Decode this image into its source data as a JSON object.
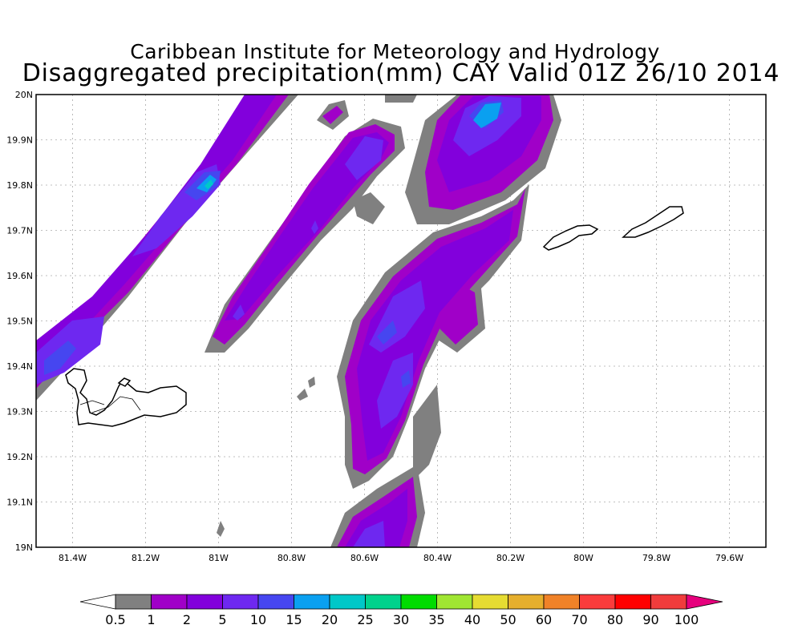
{
  "title": {
    "line1": "Caribbean Institute for Meteorology and Hydrology",
    "line2": "Disaggregated precipitation(mm) CAY Valid 01Z 26/10 2014"
  },
  "map": {
    "lon_range": [
      -81.5,
      -79.5
    ],
    "lat_range": [
      19.0,
      20.0
    ],
    "grid": true,
    "lon_ticks": [
      "81.4W",
      "81.2W",
      "81W",
      "80.8W",
      "80.6W",
      "80.4W",
      "80.2W",
      "80W",
      "79.8W",
      "79.6W"
    ],
    "lat_ticks": [
      "19N",
      "19.1N",
      "19.2N",
      "19.3N",
      "19.4N",
      "19.5N",
      "19.6N",
      "19.7N",
      "19.8N",
      "19.9N",
      "20N"
    ],
    "features": [
      "Grand Cayman",
      "Little Cayman",
      "Cayman Brac"
    ]
  },
  "colorbar": {
    "labels": [
      "0.5",
      "1",
      "2",
      "5",
      "10",
      "15",
      "20",
      "25",
      "30",
      "35",
      "40",
      "50",
      "60",
      "70",
      "80",
      "90",
      "100"
    ],
    "colors": [
      "#ffffff",
      "#808080",
      "#a000c8",
      "#8200dc",
      "#6e28f0",
      "#4646f0",
      "#0aa0f0",
      "#00c8c8",
      "#00d28c",
      "#00dc00",
      "#a0e632",
      "#e6dc32",
      "#e6af2d",
      "#f08228",
      "#fa3c3c",
      "#ff0000",
      "#f03c3c",
      "#e6007d"
    ]
  }
}
